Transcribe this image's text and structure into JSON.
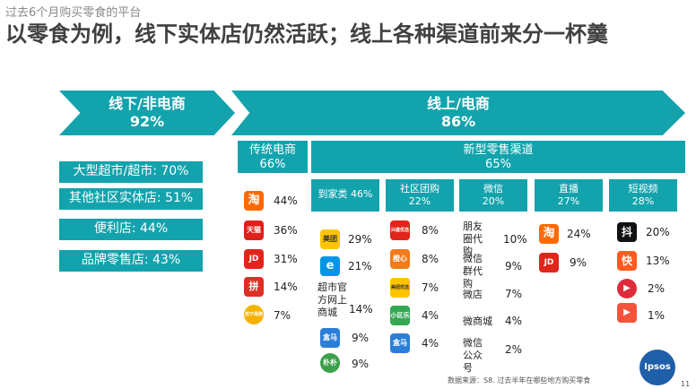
{
  "subtitle": "过去6个月购买零食的平台",
  "headline": "以零食为例，线下实体店仍然活跃；线上各种渠道前来分一杯羹",
  "offline": {
    "label": "线下/非电商",
    "pct": "92%"
  },
  "online": {
    "label": "线上/电商",
    "pct": "86%"
  },
  "offline_items": [
    "大型超市/超市: 70%",
    "其他社区实体店: 51%",
    "便利店: 44%",
    "品牌零售店: 43%"
  ],
  "traditional": {
    "label": "传统电商",
    "pct": "66%"
  },
  "new_retail": {
    "label": "新型零售渠道",
    "pct": "65%"
  },
  "subcats": {
    "daojia": "到家类 46%",
    "shequ": {
      "label": "社区团购",
      "pct": "22%"
    },
    "weixin": {
      "label": "微信",
      "pct": "20%"
    },
    "zhibo": {
      "label": "直播",
      "pct": "27%"
    },
    "duanshipin": {
      "label": "短视频",
      "pct": "28%"
    }
  },
  "traditional_items": [
    {
      "icon": "淘",
      "pct": "44%",
      "color": "#ff6a00"
    },
    {
      "icon": "天猫",
      "pct": "36%",
      "color": "#e0201b"
    },
    {
      "icon": "JD",
      "pct": "31%",
      "color": "#e1251b"
    },
    {
      "icon": "拼",
      "pct": "14%",
      "color": "#e02e24"
    },
    {
      "icon": "苏宁易购",
      "pct": "7%",
      "color": "#f5b301"
    }
  ],
  "daojia_items": [
    {
      "icon": "美团",
      "pct": "29%",
      "color": "#ffc300"
    },
    {
      "icon": "e",
      "pct": "21%",
      "color": "#0096e5"
    }
  ],
  "chaoshi": {
    "text": "超市官方网上商城",
    "pct": "14%"
  },
  "daojia_more": [
    {
      "icon": "盒马",
      "pct": "9%",
      "color": "#2b7fd8"
    },
    {
      "icon": "朴朴",
      "pct": "9%",
      "color": "#3aa04a"
    }
  ],
  "shequ_items": [
    {
      "icon": "兴盛优选",
      "pct": "8%",
      "color": "#e1251b"
    },
    {
      "icon": "橙心",
      "pct": "8%",
      "color": "#f07b1b"
    },
    {
      "icon": "美团优选",
      "pct": "7%",
      "color": "#ffc300"
    },
    {
      "icon": "小区乐",
      "pct": "4%",
      "color": "#33a853"
    },
    {
      "icon": "盒马",
      "pct": "4%",
      "color": "#2b7fd8"
    }
  ],
  "weixin_items": [
    {
      "text": "朋友圈代购",
      "pct": "10%"
    },
    {
      "text": "微信群代购",
      "pct": "9%"
    },
    {
      "text": "微店",
      "pct": "7%"
    },
    {
      "text": "微商城",
      "pct": "4%"
    },
    {
      "text": "微信公众号",
      "pct": "2%"
    }
  ],
  "zhibo_items": [
    {
      "icon": "淘",
      "pct": "24%",
      "color": "#ff6a00"
    },
    {
      "icon": "JD",
      "pct": "9%",
      "color": "#e1251b"
    }
  ],
  "duanshipin_items": [
    {
      "icon": "抖",
      "pct": "20%",
      "color": "#111111"
    },
    {
      "icon": "快",
      "pct": "13%",
      "color": "#ff5a1f"
    },
    {
      "icon": "▶",
      "pct": "2%",
      "color": "#e02b3a"
    },
    {
      "icon": "▶",
      "pct": "1%",
      "color": "#f4533b"
    }
  ],
  "source": "数据来源：S8. 过去半年在哪些地方购买零食",
  "brand": "Ipsos",
  "page": "11"
}
